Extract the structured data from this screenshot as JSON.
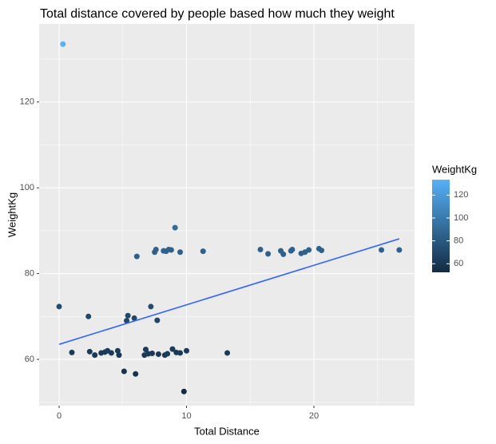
{
  "chart_data": {
    "type": "scatter",
    "title": "Total distance covered by people based how much they weight",
    "x_label": "Total Distance",
    "y_label": "WeightKg",
    "x": [
      0.3,
      0,
      1,
      2.3,
      2.4,
      2.8,
      3.3,
      3.6,
      3.8,
      4.1,
      4.6,
      4.7,
      5.1,
      5.3,
      5.4,
      5.9,
      6,
      6.1,
      6.7,
      6.8,
      7,
      7.2,
      7.3,
      7.5,
      7.6,
      7.7,
      7.8,
      8.2,
      8.3,
      8.4,
      8.5,
      8.6,
      8.8,
      8.9,
      9.1,
      9.2,
      9.5,
      9.5,
      9.8,
      10,
      11.3,
      13.2,
      15.8,
      16.4,
      17.4,
      17.6,
      18.2,
      18.3,
      19,
      19.3,
      19.6,
      20.4,
      20.6,
      25.3,
      26.7
    ],
    "values": [
      133.5,
      72.3,
      61.6,
      70,
      61.8,
      61,
      61.5,
      61.7,
      62,
      61.5,
      62,
      61,
      57.2,
      69,
      70.2,
      69.6,
      56.6,
      84,
      61,
      62.3,
      61.3,
      72.3,
      61.4,
      85,
      85.6,
      69.1,
      61.2,
      85.3,
      61,
      85.2,
      61.3,
      85.6,
      85.5,
      62.4,
      90.7,
      61.6,
      85,
      61.5,
      52.5,
      62,
      85.2,
      61.5,
      85.6,
      84.6,
      85.3,
      84.5,
      85.3,
      85.6,
      84.7,
      85,
      85.5,
      85.8,
      85.4,
      85.5,
      85.5
    ],
    "trend": {
      "x": [
        0,
        26.7
      ],
      "y": [
        63.5,
        88.1
      ],
      "color": "#3366FF"
    },
    "xlim": [
      -1.57,
      27.9
    ],
    "ylim": [
      49.2,
      138.2
    ],
    "xticks": [
      0,
      10,
      20
    ],
    "yticks": [
      60,
      80,
      100,
      120
    ],
    "grid": true,
    "minor_grid": true,
    "color_scale": {
      "title": "WeightKg",
      "low": "#132B43",
      "high": "#56B1F7",
      "ticks": [
        60,
        80,
        100,
        120
      ]
    }
  }
}
